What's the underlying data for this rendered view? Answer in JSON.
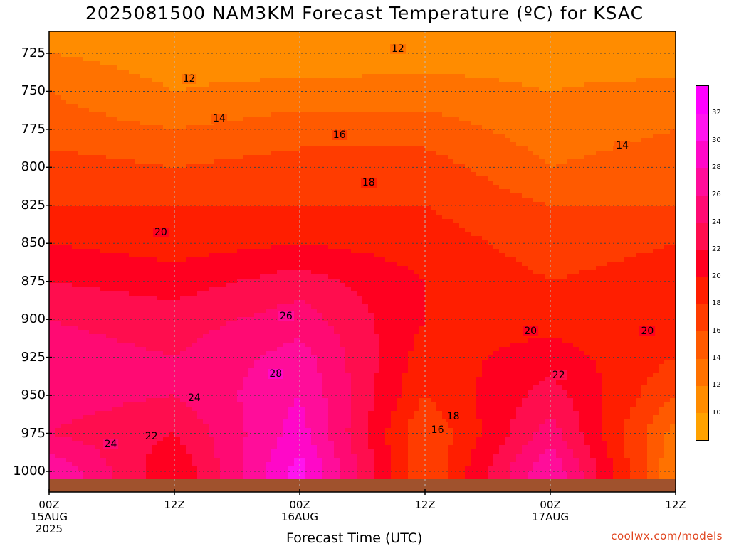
{
  "chart_data": {
    "type": "heatmap",
    "title": "2025081500 NAM3KM Forecast Temperature (ºC) for KSAC",
    "xlabel": "Forecast Time (UTC)",
    "ylabel": "",
    "y_tick_labels": [
      "725",
      "750",
      "775",
      "800",
      "825",
      "850",
      "875",
      "900",
      "925",
      "950",
      "975",
      "1000"
    ],
    "x_tick_labels": [
      {
        "time": "00Z",
        "day": "15AUG",
        "year": "2025"
      },
      {
        "time": "12Z",
        "day": "",
        "year": ""
      },
      {
        "time": "00Z",
        "day": "16AUG",
        "year": ""
      },
      {
        "time": "12Z",
        "day": "",
        "year": ""
      },
      {
        "time": "00Z",
        "day": "17AUG",
        "year": ""
      },
      {
        "time": "12Z",
        "day": "",
        "year": ""
      }
    ],
    "forecast_hours": [
      0,
      12,
      24,
      36,
      48,
      60
    ],
    "pressure_levels_hpa": [
      725,
      750,
      775,
      800,
      825,
      850,
      875,
      900,
      925,
      950,
      975,
      1000
    ],
    "temperature_c": [
      [
        12,
        11,
        10,
        11,
        11,
        10
      ],
      [
        14,
        12,
        13,
        13,
        12,
        13
      ],
      [
        15,
        14,
        15,
        15,
        13,
        14
      ],
      [
        17,
        16,
        17,
        17,
        14,
        15
      ],
      [
        18,
        18,
        18,
        18,
        16,
        16
      ],
      [
        20,
        19,
        20,
        19,
        17,
        18
      ],
      [
        22,
        21,
        23,
        20,
        18,
        19
      ],
      [
        24,
        23,
        25,
        20,
        19,
        19
      ],
      [
        25,
        24,
        27,
        19,
        21,
        18
      ],
      [
        25,
        24,
        28,
        18,
        23,
        16
      ],
      [
        24,
        22,
        29,
        16,
        25,
        13
      ],
      [
        28,
        20,
        31,
        16,
        28,
        12
      ]
    ],
    "contour_labels": [
      {
        "text": "12",
        "hour": 33.4,
        "hpa": 722
      },
      {
        "text": "12",
        "hour": 13.4,
        "hpa": 742
      },
      {
        "text": "14",
        "hour": 16.3,
        "hpa": 768
      },
      {
        "text": "16",
        "hour": 27.8,
        "hpa": 779
      },
      {
        "text": "14",
        "hour": 54.9,
        "hpa": 786
      },
      {
        "text": "18",
        "hour": 30.6,
        "hpa": 810
      },
      {
        "text": "20",
        "hour": 10.7,
        "hpa": 843
      },
      {
        "text": "26",
        "hour": 22.7,
        "hpa": 898
      },
      {
        "text": "20",
        "hour": 46.1,
        "hpa": 908
      },
      {
        "text": "20",
        "hour": 57.3,
        "hpa": 908
      },
      {
        "text": "28",
        "hour": 21.7,
        "hpa": 936
      },
      {
        "text": "22",
        "hour": 48.8,
        "hpa": 937
      },
      {
        "text": "24",
        "hour": 13.9,
        "hpa": 952
      },
      {
        "text": "18",
        "hour": 38.7,
        "hpa": 964
      },
      {
        "text": "16",
        "hour": 37.2,
        "hpa": 973
      },
      {
        "text": "22",
        "hour": 9.8,
        "hpa": 977
      },
      {
        "text": "24",
        "hour": 5.9,
        "hpa": 982
      }
    ],
    "colorbar": {
      "ticks": [
        "10",
        "12",
        "14",
        "16",
        "18",
        "20",
        "22",
        "24",
        "26",
        "28",
        "30",
        "32"
      ],
      "colors": [
        "#ffa200",
        "#ff8c00",
        "#ff7200",
        "#ff5a00",
        "#ff3c00",
        "#ff1e00",
        "#ff0020",
        "#ff0d4e",
        "#ff0a73",
        "#ff0d9a",
        "#ff08c8",
        "#ff14ee",
        "#ff00ff"
      ]
    },
    "ground_color": "#a0522d",
    "grid": true
  },
  "credit": "coolwx.com/models"
}
